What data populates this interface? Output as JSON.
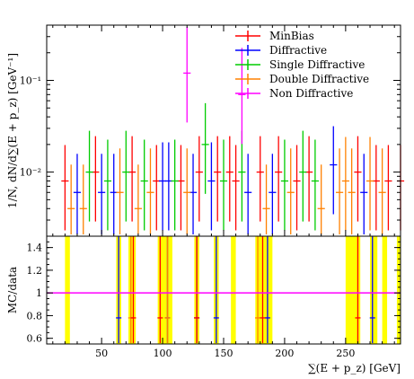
{
  "chart_data": [
    {
      "type": "scatter",
      "panel": "main",
      "ylabel": "1/N, dN/d∑(E + p_z) [GeV⁻¹]",
      "yscale": "log",
      "ylim": [
        0.002,
        0.4
      ],
      "xlim": [
        5,
        295
      ],
      "y_ticks": [
        {
          "value": 0.01,
          "label": "10⁻²"
        },
        {
          "value": 0.1,
          "label": "10⁻¹"
        }
      ],
      "legend_position": "top-right",
      "series": [
        {
          "name": "MinBias",
          "color": "#ff0000",
          "x_halfwidth": 3,
          "points": [
            [
              20,
              0.008
            ],
            [
              45,
              0.01
            ],
            [
              75,
              0.01
            ],
            [
              95,
              0.008
            ],
            [
              115,
              0.008
            ],
            [
              130,
              0.01
            ],
            [
              145,
              0.01
            ],
            [
              155,
              0.01
            ],
            [
              160,
              0.008
            ],
            [
              180,
              0.01
            ],
            [
              195,
              0.01
            ],
            [
              210,
              0.008
            ],
            [
              220,
              0.01
            ],
            [
              260,
              0.01
            ],
            [
              275,
              0.008
            ],
            [
              285,
              0.008
            ],
            [
              295,
              0.008
            ]
          ]
        },
        {
          "name": "Diffractive",
          "color": "#0000ff",
          "x_halfwidth": 3,
          "points": [
            [
              30,
              0.006
            ],
            [
              50,
              0.006
            ],
            [
              60,
              0.006
            ],
            [
              100,
              0.008
            ],
            [
              105,
              0.008
            ],
            [
              125,
              0.006
            ],
            [
              140,
              0.008
            ],
            [
              170,
              0.006
            ],
            [
              190,
              0.006
            ],
            [
              240,
              0.012
            ],
            [
              265,
              0.006
            ]
          ]
        },
        {
          "name": "Single Diffractive",
          "color": "#00cc00",
          "x_halfwidth": 3,
          "points": [
            [
              40,
              0.01
            ],
            [
              55,
              0.008
            ],
            [
              70,
              0.01
            ],
            [
              85,
              0.008
            ],
            [
              110,
              0.008
            ],
            [
              135,
              0.02
            ],
            [
              150,
              0.008
            ],
            [
              165,
              0.01
            ],
            [
              200,
              0.008
            ],
            [
              215,
              0.01
            ],
            [
              225,
              0.008
            ]
          ]
        },
        {
          "name": "Double Diffractive",
          "color": "#ff8000",
          "x_halfwidth": 3,
          "points": [
            [
              25,
              0.004
            ],
            [
              35,
              0.004
            ],
            [
              65,
              0.006
            ],
            [
              80,
              0.004
            ],
            [
              90,
              0.006
            ],
            [
              120,
              0.006
            ],
            [
              185,
              0.004
            ],
            [
              205,
              0.006
            ],
            [
              230,
              0.004
            ],
            [
              245,
              0.006
            ],
            [
              250,
              0.008
            ],
            [
              255,
              0.006
            ],
            [
              270,
              0.008
            ],
            [
              280,
              0.006
            ]
          ]
        },
        {
          "name": "Non Diffractive",
          "color": "#ff00ff",
          "x_halfwidth": 3,
          "points": [
            [
              120,
              0.12
            ],
            [
              165,
              0.07
            ]
          ]
        }
      ]
    },
    {
      "type": "ratio",
      "panel": "ratio",
      "xlabel": "∑(E + p_z) [GeV]",
      "ylabel": "MC/data",
      "ylim": [
        0.55,
        1.5
      ],
      "xlim": [
        5,
        295
      ],
      "x_ticks": [
        50,
        100,
        150,
        200,
        250
      ],
      "y_ticks": [
        0.6,
        0.8,
        1,
        1.2,
        1.4
      ],
      "reference_line": {
        "value": 1,
        "color": "#ff00ff"
      },
      "band_color": "#ffff00",
      "bands": [
        [
          20,
          24
        ],
        [
          62,
          66
        ],
        [
          72,
          78
        ],
        [
          96,
          108
        ],
        [
          126,
          130
        ],
        [
          142,
          146
        ],
        [
          156,
          160
        ],
        [
          176,
          190
        ],
        [
          250,
          262
        ],
        [
          270,
          276
        ],
        [
          280,
          284
        ],
        [
          292,
          295
        ]
      ],
      "errorbars": [
        {
          "color": "#0000ff",
          "points": [
            [
              64,
              0.78
            ],
            [
              104,
              0.78
            ],
            [
              128,
              0.78
            ],
            [
              144,
              0.78
            ],
            [
              186,
              0.78
            ],
            [
              272,
              0.78
            ]
          ]
        },
        {
          "color": "#ff8000",
          "points": [
            [
              74,
              0.78
            ],
            [
              104,
              0.78
            ],
            [
              178,
              0.78
            ]
          ]
        },
        {
          "color": "#ff0000",
          "points": [
            [
              76,
              0.78
            ],
            [
              98,
              0.78
            ],
            [
              128,
              0.78
            ],
            [
              182,
              0.78
            ],
            [
              260,
              0.78
            ]
          ]
        }
      ]
    }
  ]
}
